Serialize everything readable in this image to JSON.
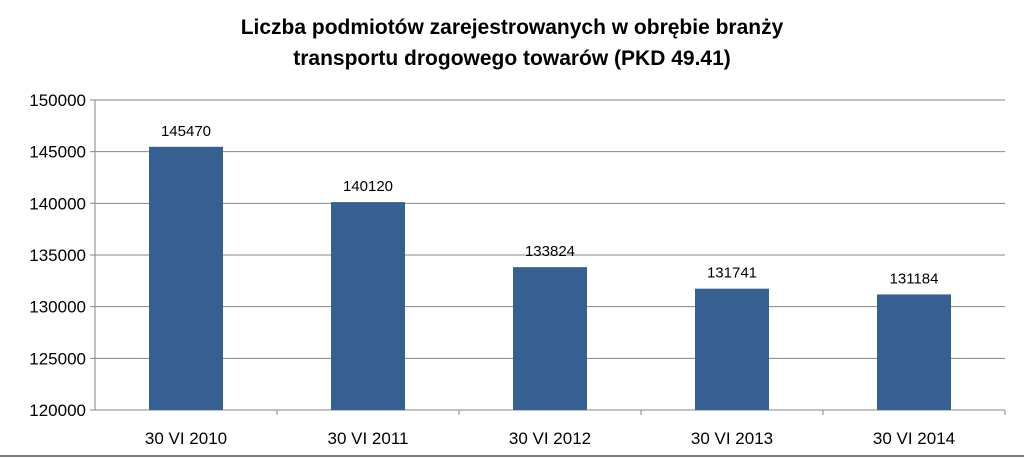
{
  "chart_data": {
    "type": "bar",
    "title_lines": [
      "Liczba podmiotów zarejestrowanych w obrębie branży",
      "transportu drogowego towarów (PKD 49.41)"
    ],
    "categories": [
      "30 VI 2010",
      "30 VI 2011",
      "30 VI 2012",
      "30 VI 2013",
      "30 VI 2014"
    ],
    "values": [
      145470,
      140120,
      133824,
      131741,
      131184
    ],
    "data_labels": [
      "145470",
      "140120",
      "133824",
      "131741",
      "131184"
    ],
    "ylim": [
      120000,
      150000
    ],
    "yticks": [
      120000,
      125000,
      130000,
      135000,
      140000,
      145000,
      150000
    ],
    "ytick_labels": [
      "120000",
      "125000",
      "130000",
      "135000",
      "140000",
      "145000",
      "150000"
    ],
    "grid": true,
    "legend": false,
    "bar_color": "#376092",
    "grid_color": "#868686"
  }
}
